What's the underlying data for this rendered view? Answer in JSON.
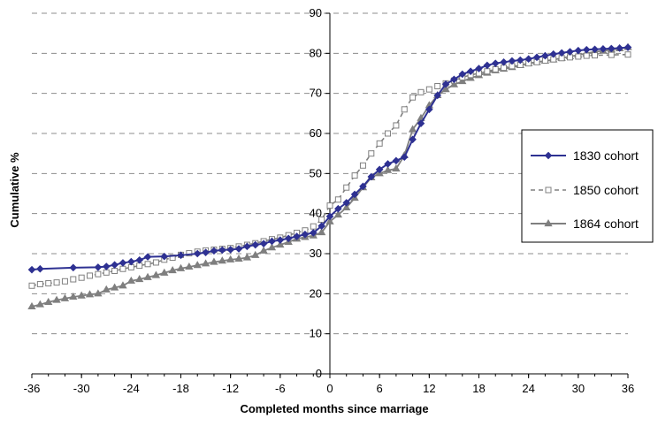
{
  "chart_data": {
    "type": "line",
    "title": "",
    "xlabel": "Completed months since marriage",
    "ylabel": "Cumulative %",
    "xlim": [
      -36,
      36
    ],
    "ylim": [
      0,
      90
    ],
    "x_ticks": [
      "-36",
      "-30",
      "-24",
      "-18",
      "-12",
      "-6",
      "0",
      "6",
      "12",
      "18",
      "24",
      "30",
      "36"
    ],
    "y_ticks": [
      "0",
      "10",
      "20",
      "30",
      "40",
      "50",
      "60",
      "70",
      "80",
      "90"
    ],
    "grid": "horizontal dashed",
    "legend_position": "right",
    "series": [
      {
        "name": "1830 cohort",
        "color": "#2e3192",
        "marker": "diamond",
        "line": "solid",
        "points": [
          [
            -36,
            26.0
          ],
          [
            -35,
            26.2
          ],
          [
            -31,
            26.5
          ],
          [
            -28,
            26.6
          ],
          [
            -27,
            26.8
          ],
          [
            -26,
            27.2
          ],
          [
            -25,
            27.7
          ],
          [
            -24,
            28.0
          ],
          [
            -23,
            28.4
          ],
          [
            -22,
            29.2
          ],
          [
            -20,
            29.3
          ],
          [
            -18,
            29.6
          ],
          [
            -16,
            30.0
          ],
          [
            -15,
            30.3
          ],
          [
            -14,
            30.7
          ],
          [
            -13,
            30.9
          ],
          [
            -12,
            31.0
          ],
          [
            -11,
            31.2
          ],
          [
            -10,
            31.8
          ],
          [
            -9,
            32.2
          ],
          [
            -8,
            32.5
          ],
          [
            -7,
            33.1
          ],
          [
            -6,
            33.4
          ],
          [
            -5,
            33.8
          ],
          [
            -4,
            34.3
          ],
          [
            -3,
            34.8
          ],
          [
            -2,
            35.2
          ],
          [
            -1,
            36.9
          ],
          [
            0,
            39.3
          ],
          [
            1,
            41.2
          ],
          [
            2,
            42.7
          ],
          [
            3,
            44.8
          ],
          [
            4,
            46.8
          ],
          [
            5,
            49.2
          ],
          [
            6,
            51.0
          ],
          [
            7,
            52.4
          ],
          [
            8,
            53.2
          ],
          [
            9,
            54.1
          ],
          [
            10,
            58.5
          ],
          [
            11,
            62.5
          ],
          [
            12,
            66.0
          ],
          [
            13,
            69.5
          ],
          [
            14,
            72.3
          ],
          [
            15,
            73.5
          ],
          [
            16,
            74.8
          ],
          [
            17,
            75.5
          ],
          [
            18,
            76.2
          ],
          [
            19,
            77.0
          ],
          [
            20,
            77.5
          ],
          [
            21,
            77.8
          ],
          [
            22,
            78.1
          ],
          [
            23,
            78.3
          ],
          [
            24,
            78.6
          ],
          [
            25,
            79.0
          ],
          [
            26,
            79.4
          ],
          [
            27,
            79.8
          ],
          [
            28,
            80.1
          ],
          [
            29,
            80.4
          ],
          [
            30,
            80.7
          ],
          [
            31,
            80.9
          ],
          [
            32,
            81.0
          ],
          [
            33,
            81.1
          ],
          [
            34,
            81.2
          ],
          [
            35,
            81.3
          ],
          [
            36,
            81.5
          ]
        ]
      },
      {
        "name": "1850 cohort",
        "color": "#808080",
        "marker": "square-open",
        "line": "dashed",
        "points": [
          [
            -36,
            22.0
          ],
          [
            -35,
            22.4
          ],
          [
            -34,
            22.6
          ],
          [
            -33,
            22.8
          ],
          [
            -32,
            23.1
          ],
          [
            -31,
            23.6
          ],
          [
            -30,
            24.0
          ],
          [
            -29,
            24.5
          ],
          [
            -28,
            24.9
          ],
          [
            -27,
            25.3
          ],
          [
            -26,
            25.7
          ],
          [
            -25,
            26.2
          ],
          [
            -24,
            26.6
          ],
          [
            -23,
            27.0
          ],
          [
            -22,
            27.4
          ],
          [
            -21,
            27.8
          ],
          [
            -20,
            28.5
          ],
          [
            -19,
            29.0
          ],
          [
            -18,
            29.7
          ],
          [
            -17,
            30.1
          ],
          [
            -16,
            30.5
          ],
          [
            -15,
            30.8
          ],
          [
            -14,
            31.0
          ],
          [
            -13,
            31.2
          ],
          [
            -12,
            31.4
          ],
          [
            -11,
            31.8
          ],
          [
            -10,
            32.2
          ],
          [
            -9,
            32.6
          ],
          [
            -8,
            33.1
          ],
          [
            -7,
            33.6
          ],
          [
            -6,
            34.0
          ],
          [
            -5,
            34.6
          ],
          [
            -4,
            35.2
          ],
          [
            -3,
            35.8
          ],
          [
            -2,
            36.8
          ],
          [
            -1,
            38.5
          ],
          [
            0,
            42.0
          ],
          [
            1,
            43.5
          ],
          [
            2,
            46.5
          ],
          [
            3,
            49.5
          ],
          [
            4,
            52.0
          ],
          [
            5,
            55.0
          ],
          [
            6,
            57.5
          ],
          [
            7,
            60.0
          ],
          [
            8,
            62.0
          ],
          [
            9,
            66.0
          ],
          [
            10,
            69.0
          ],
          [
            11,
            70.3
          ],
          [
            12,
            71.0
          ],
          [
            13,
            71.8
          ],
          [
            14,
            72.5
          ],
          [
            15,
            73.2
          ],
          [
            16,
            74.0
          ],
          [
            17,
            74.6
          ],
          [
            18,
            75.0
          ],
          [
            19,
            75.5
          ],
          [
            20,
            76.0
          ],
          [
            21,
            76.4
          ],
          [
            22,
            76.8
          ],
          [
            23,
            77.1
          ],
          [
            24,
            77.5
          ],
          [
            25,
            77.8
          ],
          [
            26,
            78.2
          ],
          [
            27,
            78.5
          ],
          [
            28,
            78.8
          ],
          [
            29,
            79.0
          ],
          [
            30,
            79.2
          ],
          [
            31,
            79.4
          ],
          [
            32,
            79.5
          ],
          [
            34,
            79.6
          ],
          [
            36,
            79.7
          ]
        ]
      },
      {
        "name": "1864 cohort",
        "color": "#7f7f7f",
        "marker": "triangle",
        "line": "solid",
        "points": [
          [
            -36,
            16.8
          ],
          [
            -35,
            17.3
          ],
          [
            -34,
            17.9
          ],
          [
            -33,
            18.4
          ],
          [
            -32,
            18.8
          ],
          [
            -31,
            19.2
          ],
          [
            -30,
            19.5
          ],
          [
            -29,
            19.8
          ],
          [
            -28,
            20.0
          ],
          [
            -27,
            21.0
          ],
          [
            -26,
            21.5
          ],
          [
            -25,
            22.0
          ],
          [
            -24,
            23.2
          ],
          [
            -23,
            23.6
          ],
          [
            -22,
            24.1
          ],
          [
            -21,
            24.6
          ],
          [
            -20,
            25.2
          ],
          [
            -19,
            25.8
          ],
          [
            -18,
            26.3
          ],
          [
            -17,
            26.7
          ],
          [
            -16,
            27.1
          ],
          [
            -15,
            27.5
          ],
          [
            -14,
            27.9
          ],
          [
            -13,
            28.2
          ],
          [
            -12,
            28.5
          ],
          [
            -11,
            28.7
          ],
          [
            -10,
            29.0
          ],
          [
            -9,
            29.6
          ],
          [
            -8,
            30.7
          ],
          [
            -7,
            31.5
          ],
          [
            -6,
            32.2
          ],
          [
            -5,
            32.9
          ],
          [
            -4,
            33.7
          ],
          [
            -3,
            34.1
          ],
          [
            -2,
            34.5
          ],
          [
            -1,
            35.3
          ],
          [
            0,
            38.0
          ],
          [
            1,
            39.7
          ],
          [
            2,
            41.5
          ],
          [
            3,
            43.9
          ],
          [
            4,
            46.5
          ],
          [
            5,
            49.0
          ],
          [
            6,
            50.0
          ],
          [
            7,
            50.8
          ],
          [
            8,
            51.2
          ],
          [
            9,
            54.5
          ],
          [
            10,
            61.0
          ],
          [
            11,
            63.8
          ],
          [
            12,
            67.0
          ],
          [
            13,
            69.5
          ],
          [
            14,
            71.0
          ],
          [
            15,
            72.2
          ],
          [
            16,
            73.0
          ],
          [
            17,
            73.8
          ],
          [
            18,
            74.5
          ],
          [
            19,
            75.1
          ],
          [
            20,
            75.7
          ],
          [
            21,
            76.1
          ],
          [
            22,
            76.5
          ],
          [
            23,
            77.0
          ],
          [
            24,
            77.5
          ],
          [
            25,
            77.8
          ],
          [
            26,
            78.1
          ],
          [
            27,
            78.4
          ],
          [
            28,
            78.8
          ],
          [
            29,
            79.2
          ],
          [
            30,
            79.6
          ],
          [
            31,
            80.0
          ],
          [
            32,
            80.4
          ],
          [
            33,
            80.6
          ],
          [
            34,
            80.9
          ],
          [
            35,
            81.2
          ],
          [
            36,
            81.5
          ]
        ]
      }
    ]
  }
}
